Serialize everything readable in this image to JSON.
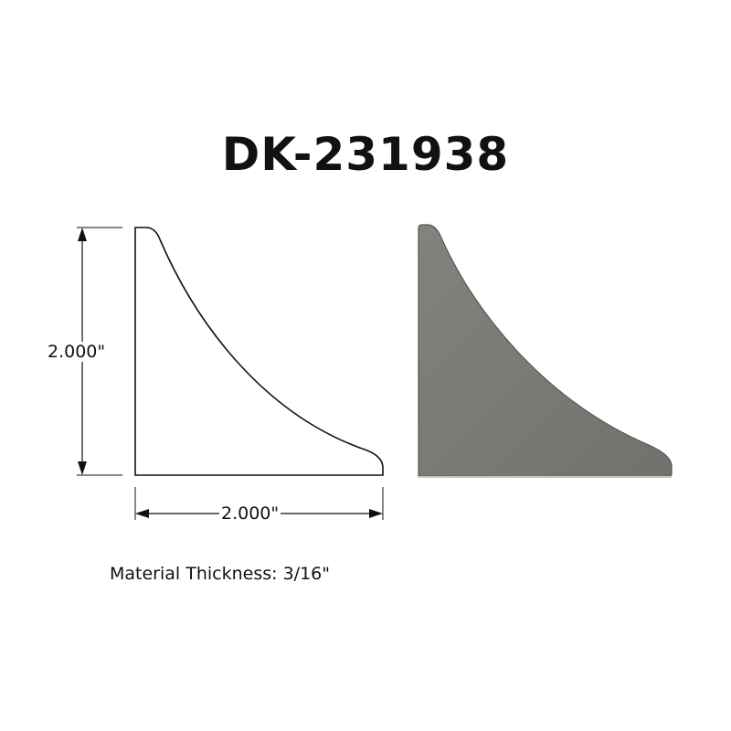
{
  "part_number": "DK-231938",
  "drawing": {
    "height_label": "2.000\"",
    "width_label": "2.000\""
  },
  "material_note": "Material Thickness: 3/16\"",
  "colors": {
    "line": "#111111",
    "photo_steel": "#7b7975"
  }
}
